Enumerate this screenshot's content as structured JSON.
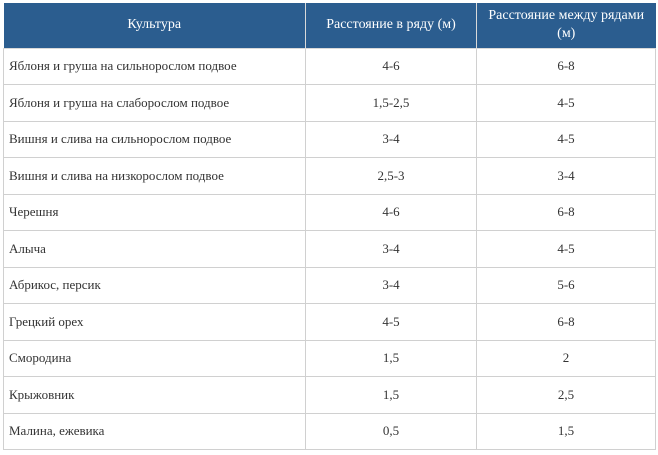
{
  "table": {
    "headers": [
      "Культура",
      "Расстояние в ряду (м)",
      "Расстояние между рядами (м)"
    ],
    "rows": [
      {
        "crop": "Яблоня и груша на сильнорослом подвое",
        "in_row": "4-6",
        "between_rows": "6-8"
      },
      {
        "crop": "Яблоня и груша на слаборослом подвое",
        "in_row": "1,5-2,5",
        "between_rows": "4-5"
      },
      {
        "crop": "Вишня и слива на сильнорослом подвое",
        "in_row": "3-4",
        "between_rows": "4-5"
      },
      {
        "crop": "Вишня и слива на низкорослом подвое",
        "in_row": "2,5-3",
        "between_rows": "3-4"
      },
      {
        "crop": "Черешня",
        "in_row": "4-6",
        "between_rows": "6-8"
      },
      {
        "crop": "Алыча",
        "in_row": "3-4",
        "between_rows": "4-5"
      },
      {
        "crop": "Абрикос, персик",
        "in_row": "3-4",
        "between_rows": "5-6"
      },
      {
        "crop": "Грецкий орех",
        "in_row": "4-5",
        "between_rows": "6-8"
      },
      {
        "crop": "Смородина",
        "in_row": "1,5",
        "between_rows": "2"
      },
      {
        "crop": "Крыжовник",
        "in_row": "1,5",
        "between_rows": "2,5"
      },
      {
        "crop": "Малина, ежевика",
        "in_row": "0,5",
        "between_rows": "1,5"
      }
    ],
    "colors": {
      "header_bg": "#2b5d8f",
      "header_text": "#ffffff",
      "grid": "#d0d0d0",
      "cell_text": "#333333"
    }
  }
}
